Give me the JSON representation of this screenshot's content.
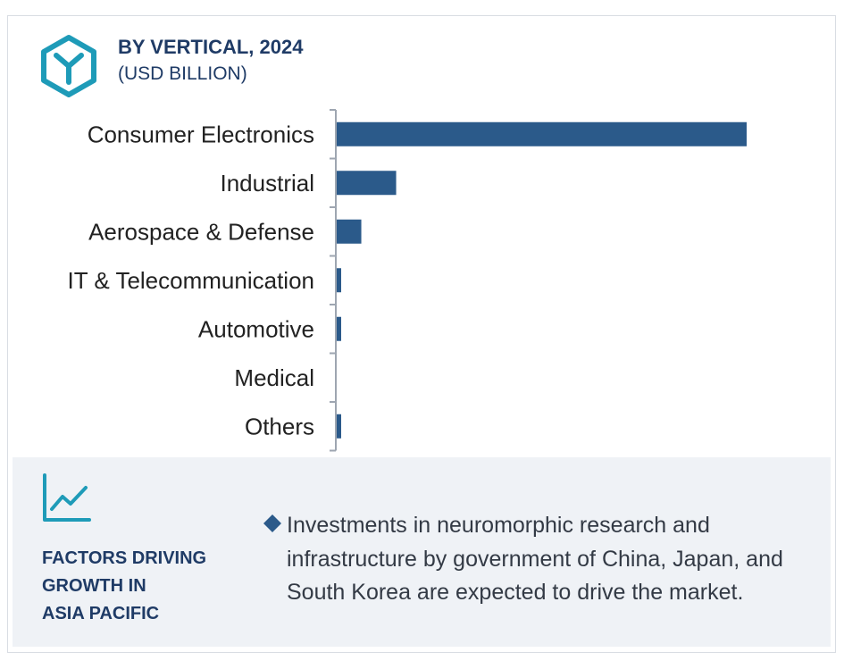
{
  "header": {
    "title": "BY VERTICAL, 2024",
    "subtitle": "(USD BILLION)",
    "icon": "hexagon-y-icon"
  },
  "chart_data": {
    "type": "bar",
    "orientation": "horizontal",
    "categories": [
      "Consumer Electronics",
      "Industrial",
      "Aerospace & Defense",
      "IT & Telecommunication",
      "Automotive",
      "Medical",
      "Others"
    ],
    "values": [
      100,
      14.5,
      6,
      1,
      1,
      0,
      1
    ],
    "bar_color": "#2b5a8a",
    "axis_color": "#9ea6b1",
    "xlim": [
      0,
      100
    ],
    "title": "BY VERTICAL, 2024",
    "subtitle": "(USD BILLION)",
    "grid": false,
    "legend": "none"
  },
  "factors": {
    "icon": "line-trend-icon",
    "title_lines": [
      "FACTORS DRIVING",
      "GROWTH IN",
      "ASIA PACIFIC"
    ],
    "bullet_icon": "diamond-icon",
    "bullet_text": "Investments in neuromorphic research and infrastructure by government of China, Japan, and South Korea are expected to drive the market."
  },
  "colors": {
    "accent_teal": "#1e9bb8",
    "navy": "#1f3b66",
    "bar": "#2b5a8a",
    "panel_bg": "#eff2f6"
  }
}
